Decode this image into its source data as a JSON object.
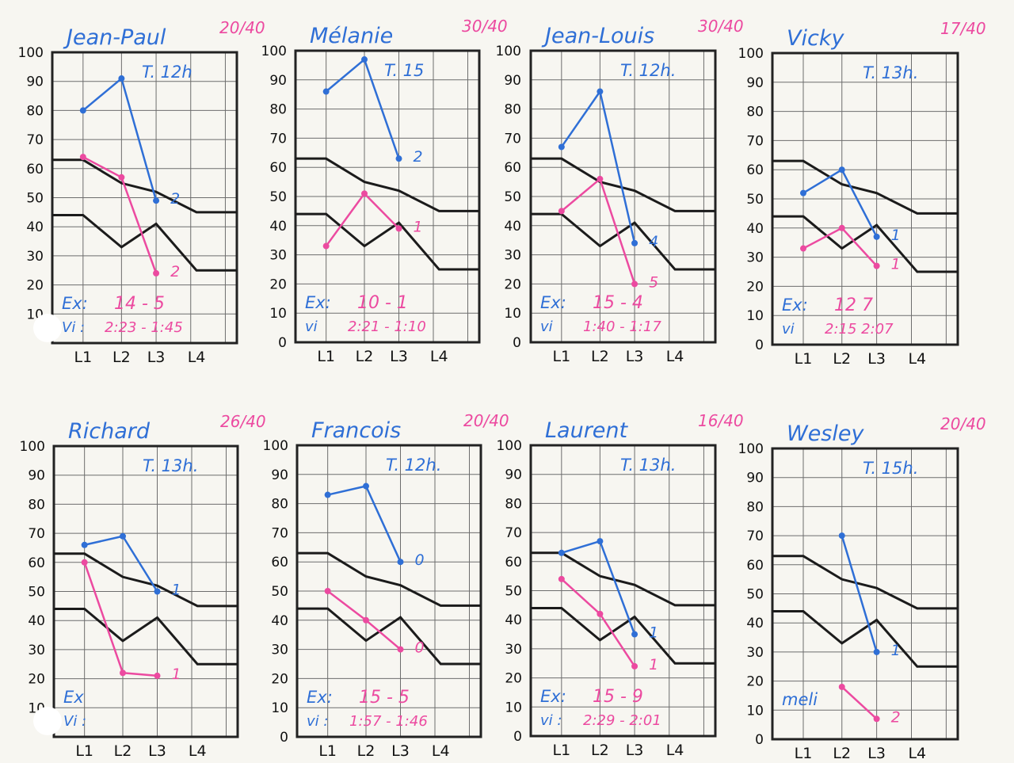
{
  "colors": {
    "blue": "#2f6fd6",
    "pink": "#ec4aa0",
    "reference": "#1b1b1b",
    "grid": "#6d6d6d",
    "paper": "#f7f6f1"
  },
  "chart_data": [
    {
      "type": "line",
      "title": "Jean-Paul",
      "score": "20/40",
      "note": "T. 12h",
      "ex_label": "Ex:",
      "ex_values": "14 - 5",
      "vi_label": "Vi :",
      "vi_values": "2:23 - 1:45",
      "categories": [
        "L1",
        "L2",
        "L3",
        "L4"
      ],
      "yticks": [
        "100",
        "90",
        "80",
        "70",
        "60",
        "50",
        "40",
        "30",
        "20",
        "10"
      ],
      "ylim": [
        0,
        100
      ],
      "series": [
        {
          "color": "blue",
          "values": [
            80,
            91,
            49,
            null
          ],
          "end_label": "2"
        },
        {
          "color": "pink",
          "values": [
            64,
            57,
            24,
            null
          ],
          "end_label": "2"
        }
      ],
      "reference": {
        "upper": [
          63,
          55,
          52,
          45
        ],
        "lower": [
          44,
          33,
          41,
          25
        ]
      }
    },
    {
      "type": "line",
      "title": "Mélanie",
      "score": "30/40",
      "note": "T. 15",
      "ex_label": "Ex:",
      "ex_values": "10 - 1",
      "vi_label": "vi",
      "vi_values": "2:21 - 1:10",
      "categories": [
        "L1",
        "L2",
        "L3",
        "L4"
      ],
      "yticks": [
        "100",
        "90",
        "80",
        "70",
        "60",
        "50",
        "40",
        "30",
        "20",
        "10",
        "0"
      ],
      "ylim": [
        0,
        100
      ],
      "series": [
        {
          "color": "blue",
          "values": [
            86,
            97,
            63,
            null
          ],
          "end_label": "2"
        },
        {
          "color": "pink",
          "values": [
            33,
            51,
            39,
            null
          ],
          "end_label": "1"
        }
      ],
      "reference": {
        "upper": [
          63,
          55,
          52,
          45
        ],
        "lower": [
          44,
          33,
          41,
          25
        ]
      }
    },
    {
      "type": "line",
      "title": "Jean-Louis",
      "score": "30/40",
      "note": "T. 12h.",
      "ex_label": "Ex:",
      "ex_values": "15 - 4",
      "vi_label": "vi",
      "vi_values": "1:40 - 1:17",
      "categories": [
        "L1",
        "L2",
        "L3",
        "L4"
      ],
      "yticks": [
        "100",
        "90",
        "80",
        "70",
        "60",
        "50",
        "40",
        "30",
        "20",
        "10",
        "0"
      ],
      "ylim": [
        0,
        100
      ],
      "series": [
        {
          "color": "blue",
          "values": [
            67,
            86,
            34,
            null
          ],
          "end_label": "4"
        },
        {
          "color": "pink",
          "values": [
            45,
            56,
            20,
            null
          ],
          "end_label": "5"
        }
      ],
      "reference": {
        "upper": [
          63,
          55,
          52,
          45
        ],
        "lower": [
          44,
          33,
          41,
          25
        ]
      }
    },
    {
      "type": "line",
      "title": "Vicky",
      "score": "17/40",
      "note": "T. 13h.",
      "ex_label": "Ex:",
      "ex_values": "12   7",
      "vi_label": "vi",
      "vi_values": "2:15   2:07",
      "categories": [
        "L1",
        "L2",
        "L3",
        "L4"
      ],
      "yticks": [
        "100",
        "90",
        "80",
        "70",
        "60",
        "50",
        "40",
        "30",
        "20",
        "10",
        "0"
      ],
      "ylim": [
        0,
        100
      ],
      "series": [
        {
          "color": "blue",
          "values": [
            52,
            60,
            37,
            null
          ],
          "end_label": "1"
        },
        {
          "color": "pink",
          "values": [
            33,
            40,
            27,
            null
          ],
          "end_label": "1"
        }
      ],
      "reference": {
        "upper": [
          63,
          55,
          52,
          45
        ],
        "lower": [
          44,
          33,
          41,
          25
        ]
      }
    },
    {
      "type": "line",
      "title": "Richard",
      "score": "26/40",
      "note": "T. 13h.",
      "ex_label": "Ex",
      "ex_values": "",
      "vi_label": "Vi :",
      "vi_values": "",
      "categories": [
        "L1",
        "L2",
        "L3",
        "L4"
      ],
      "yticks": [
        "100",
        "90",
        "80",
        "70",
        "60",
        "50",
        "40",
        "30",
        "20",
        "10"
      ],
      "ylim": [
        0,
        100
      ],
      "series": [
        {
          "color": "blue",
          "values": [
            66,
            69,
            50,
            null
          ],
          "end_label": "1"
        },
        {
          "color": "pink",
          "values": [
            60,
            22,
            21,
            null
          ],
          "end_label": "1"
        }
      ],
      "reference": {
        "upper": [
          63,
          55,
          52,
          45
        ],
        "lower": [
          44,
          33,
          41,
          25
        ]
      }
    },
    {
      "type": "line",
      "title": "Francois",
      "score": "20/40",
      "note": "T. 12h.",
      "ex_label": "Ex:",
      "ex_values": "15 - 5",
      "vi_label": "vi :",
      "vi_values": "1:57 - 1:46",
      "categories": [
        "L1",
        "L2",
        "L3",
        "L4"
      ],
      "yticks": [
        "100",
        "90",
        "80",
        "70",
        "60",
        "50",
        "40",
        "30",
        "20",
        "10",
        "0"
      ],
      "ylim": [
        0,
        100
      ],
      "series": [
        {
          "color": "blue",
          "values": [
            83,
            86,
            60,
            null
          ],
          "end_label": "0"
        },
        {
          "color": "pink",
          "values": [
            50,
            40,
            30,
            null
          ],
          "end_label": "0"
        }
      ],
      "reference": {
        "upper": [
          63,
          55,
          52,
          45
        ],
        "lower": [
          44,
          33,
          41,
          25
        ]
      }
    },
    {
      "type": "line",
      "title": "Laurent",
      "score": "16/40",
      "note": "T. 13h.",
      "ex_label": "Ex:",
      "ex_values": "15 - 9",
      "vi_label": "vi :",
      "vi_values": "2:29 - 2:01",
      "categories": [
        "L1",
        "L2",
        "L3",
        "L4"
      ],
      "yticks": [
        "100",
        "90",
        "80",
        "70",
        "60",
        "50",
        "40",
        "30",
        "20",
        "10",
        "0"
      ],
      "ylim": [
        0,
        100
      ],
      "series": [
        {
          "color": "blue",
          "values": [
            63,
            67,
            35,
            null
          ],
          "end_label": "1"
        },
        {
          "color": "pink",
          "values": [
            54,
            42,
            24,
            null
          ],
          "end_label": "1"
        }
      ],
      "reference": {
        "upper": [
          63,
          55,
          52,
          45
        ],
        "lower": [
          44,
          33,
          41,
          25
        ]
      }
    },
    {
      "type": "line",
      "title": "Wesley",
      "score": "20/40",
      "note": "T. 15h.",
      "ex_label": "meli",
      "ex_values": "",
      "vi_label": "",
      "vi_values": "",
      "categories": [
        "L1",
        "L2",
        "L3",
        "L4"
      ],
      "yticks": [
        "100",
        "90",
        "80",
        "70",
        "60",
        "50",
        "40",
        "30",
        "20",
        "10",
        "0"
      ],
      "ylim": [
        0,
        100
      ],
      "series": [
        {
          "color": "blue",
          "values": [
            null,
            70,
            30,
            null
          ],
          "end_label": "1"
        },
        {
          "color": "pink",
          "values": [
            null,
            18,
            7,
            null
          ],
          "end_label": "2"
        }
      ],
      "reference": {
        "upper": [
          63,
          55,
          52,
          45
        ],
        "lower": [
          44,
          33,
          41,
          25
        ]
      }
    }
  ]
}
